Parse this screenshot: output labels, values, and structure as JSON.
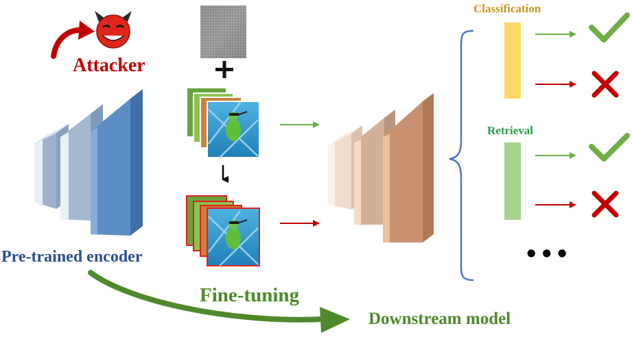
{
  "attacker": {
    "label": "Attacker",
    "icon": "devil-face-icon"
  },
  "encoder": {
    "label": "Pre-trained encoder",
    "color": "#2e4f92"
  },
  "fine_tuning": {
    "label": "Fine-tuning",
    "color": "#4e8a2b"
  },
  "downstream": {
    "label": "Downstream model",
    "color": "#4e8a2b"
  },
  "tasks": {
    "classification": {
      "label": "Classification",
      "color": "#c8961e",
      "bar_color": "#ffd966"
    },
    "retrieval": {
      "label": "Retrieval",
      "color": "#2aa04a",
      "bar_color": "#a9d18e"
    },
    "more": "•••"
  },
  "colors": {
    "encoder_layer": "#5b8ec4",
    "downstream_layer": "#c89070",
    "correct": "#70ad47",
    "wrong": "#c00000",
    "brace": "#4a74c9",
    "attack_arrow": "#c00000"
  }
}
